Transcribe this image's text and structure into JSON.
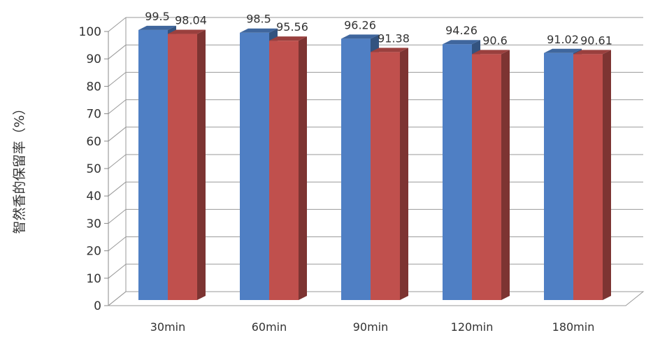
{
  "chart_data": {
    "type": "bar",
    "style": "3d-clustered-column",
    "categories": [
      "30min",
      "60min",
      "90min",
      "120min",
      "180min"
    ],
    "series": [
      {
        "values": [
          99.5,
          98.5,
          96.26,
          94.26,
          91.02
        ],
        "color": "#4f7fc4"
      },
      {
        "values": [
          98.04,
          95.56,
          91.38,
          90.6,
          90.61
        ],
        "color": "#c0504d"
      }
    ],
    "data_labels": [
      [
        "99.5",
        "98.5",
        "96.26",
        "94.26",
        "91.02"
      ],
      [
        "98.04",
        "95.56",
        "91.38",
        "90.6",
        "90.61"
      ]
    ],
    "title": "",
    "xlabel": "",
    "ylabel": "智然香的保留率（%）",
    "ylim": [
      0,
      100
    ],
    "yticks": [
      "0",
      "10",
      "20",
      "30",
      "40",
      "50",
      "60",
      "70",
      "80",
      "90",
      "100"
    ],
    "grid": true,
    "legend": "none"
  }
}
